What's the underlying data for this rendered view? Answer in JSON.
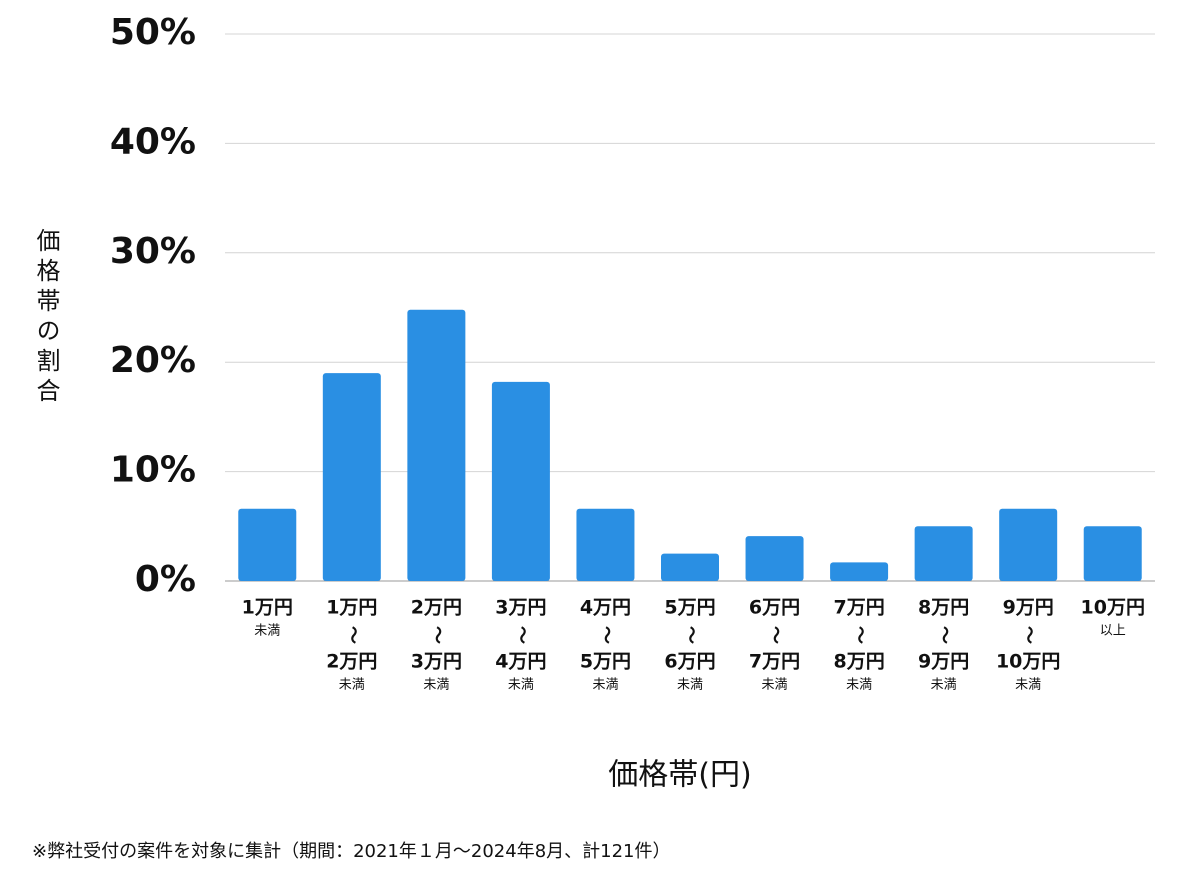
{
  "chart_data": {
    "type": "bar",
    "y_label": "価格帯の割合",
    "x_label": "価格帯(円)",
    "footnote": "※弊社受付の案件を対象に集計（期間：2021年１月〜2024年8月、計121件）",
    "categories": [
      [
        "1万円",
        "未満"
      ],
      [
        "1万円",
        "〜",
        "2万円",
        "未満"
      ],
      [
        "2万円",
        "〜",
        "3万円",
        "未満"
      ],
      [
        "3万円",
        "〜",
        "4万円",
        "未満"
      ],
      [
        "4万円",
        "〜",
        "5万円",
        "未満"
      ],
      [
        "5万円",
        "〜",
        "6万円",
        "未満"
      ],
      [
        "6万円",
        "〜",
        "7万円",
        "未満"
      ],
      [
        "7万円",
        "〜",
        "8万円",
        "未満"
      ],
      [
        "8万円",
        "〜",
        "9万円",
        "未満"
      ],
      [
        "9万円",
        "〜",
        "10万円",
        "未満"
      ],
      [
        "10万円",
        "以上"
      ]
    ],
    "values": [
      6.6,
      19.0,
      24.8,
      18.2,
      6.6,
      2.5,
      4.1,
      1.7,
      5.0,
      6.6,
      5.0
    ],
    "color": "#2a8fe3",
    "ylim": [
      0,
      50
    ],
    "yticks": [
      {
        "value": 0,
        "label": "0%"
      },
      {
        "value": 10,
        "label": "10%"
      },
      {
        "value": 20,
        "label": "20%"
      },
      {
        "value": 30,
        "label": "30%"
      },
      {
        "value": 40,
        "label": "40%"
      },
      {
        "value": 50,
        "label": "50%"
      }
    ],
    "grid": true
  }
}
